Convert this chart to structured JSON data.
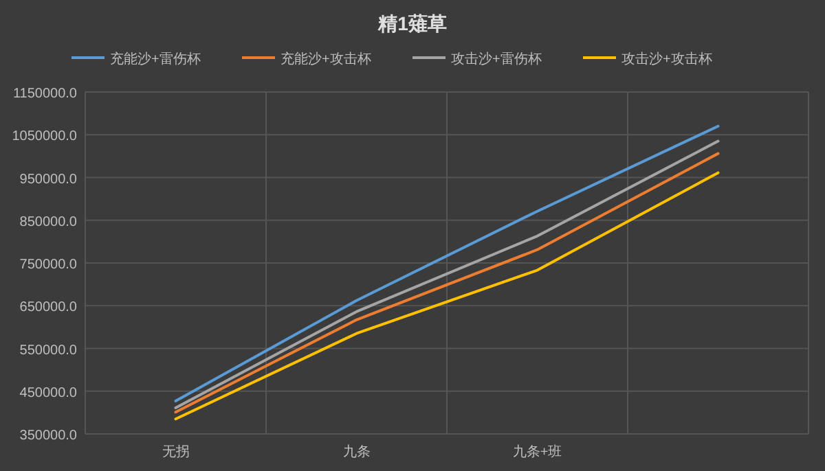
{
  "chart_data": {
    "type": "line",
    "title": "精1薙草",
    "categories": [
      "无拐",
      "九条",
      "九条+班",
      null
    ],
    "series": [
      {
        "name": "充能沙+雷伤杯",
        "color": "#5b9bd5",
        "values": [
          427000,
          662000,
          871000,
          1070000
        ]
      },
      {
        "name": "充能沙+攻击杯",
        "color": "#ed7d31",
        "values": [
          401000,
          617000,
          781000,
          1006000
        ]
      },
      {
        "name": "攻击沙+雷伤杯",
        "color": "#a5a5a5",
        "values": [
          411000,
          636000,
          813000,
          1035000
        ]
      },
      {
        "name": "攻击沙+攻击杯",
        "color": "#ffc000",
        "values": [
          385000,
          585000,
          733000,
          961000
        ]
      }
    ],
    "ylim": [
      350000,
      1150000
    ],
    "yticks": [
      {
        "value": 350000,
        "label": "350000.0"
      },
      {
        "value": 450000,
        "label": "450000.0"
      },
      {
        "value": 550000,
        "label": "550000.0"
      },
      {
        "value": 650000,
        "label": "650000.0"
      },
      {
        "value": 750000,
        "label": "750000.0"
      },
      {
        "value": 850000,
        "label": "850000.0"
      },
      {
        "value": 950000,
        "label": "950000.0"
      },
      {
        "value": 1050000,
        "label": "1050000.0"
      },
      {
        "value": 1150000,
        "label": "1150000.0"
      }
    ],
    "grid": true,
    "legend": "top",
    "marker": "none",
    "line_style": "solid"
  }
}
